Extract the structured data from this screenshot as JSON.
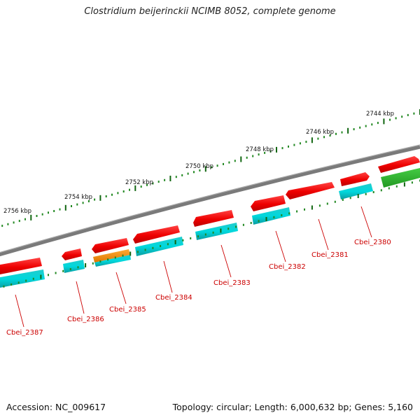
{
  "title": "Clostridium beijerinckii NCIMB 8052, complete genome",
  "footer": {
    "accession": "Accession: NC_009617",
    "summary": "Topology: circular; Length: 6,000,632 bp; Genes: 5,160"
  },
  "ticks": [
    "2744 kbp",
    "2746 kbp",
    "2748 kbp",
    "2750 kbp",
    "2752 kbp",
    "2754 kbp",
    "2756 kbp"
  ],
  "genes": [
    "Cbei_2380",
    "Cbei_2381",
    "Cbei_2382",
    "Cbei_2383",
    "Cbei_2384",
    "Cbei_2385",
    "Cbei_2386",
    "Cbei_2387"
  ],
  "colors": {
    "gene_label": "#cc0000",
    "cds_red": "#ee1111",
    "cds_cyan": "#11c8cc",
    "cds_orange": "#ee8811",
    "cds_green": "#33bb33",
    "tick_green": "#117711",
    "backbone": "#808080"
  }
}
